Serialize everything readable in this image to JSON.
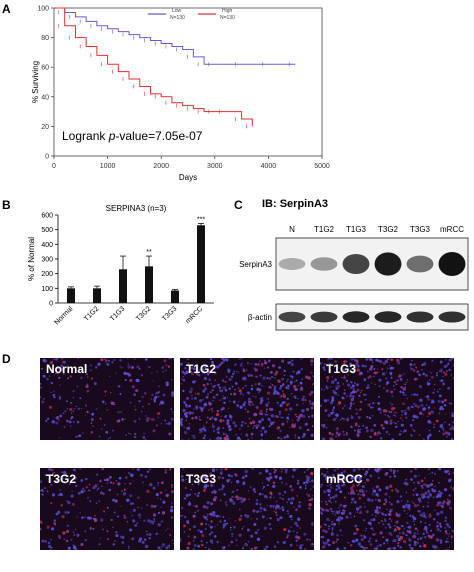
{
  "panel_labels": {
    "a": "A",
    "b": "B",
    "c": "C",
    "d": "D"
  },
  "colors": {
    "low": "#6a5acd",
    "high": "#e03030",
    "bar": "#111111",
    "tissue_bg": "#1a0a20",
    "nuclei": "#5a4dd8"
  },
  "chart_data": [
    {
      "type": "line",
      "panel": "A",
      "xlabel": "Days",
      "ylabel": "% Surviving",
      "xlim": [
        0,
        5000
      ],
      "ylim": [
        0,
        100
      ],
      "xticks": [
        "0",
        "1000",
        "2000",
        "3000",
        "4000",
        "5000"
      ],
      "yticks": [
        "0",
        "20",
        "40",
        "60",
        "80",
        "100"
      ],
      "annotation_prefix": "Logrank ",
      "annotation_italic": "p",
      "annotation_suffix": "-value=7.05e-07",
      "legend_position": "top-right",
      "series": [
        {
          "name": "Low",
          "n_label": "N=130",
          "color": "#6a5acd",
          "x": [
            0,
            200,
            400,
            600,
            800,
            1000,
            1200,
            1400,
            1600,
            1800,
            2000,
            2200,
            2400,
            2600,
            2800,
            3000,
            3500,
            4000,
            4500
          ],
          "y": [
            100,
            97,
            94,
            91,
            88,
            86,
            84,
            82,
            80,
            78,
            76,
            74,
            72,
            67,
            62,
            62,
            62,
            62,
            62
          ]
        },
        {
          "name": "High",
          "n_label": "N=130",
          "color": "#e03030",
          "x": [
            0,
            200,
            400,
            600,
            800,
            1000,
            1200,
            1400,
            1600,
            1800,
            2000,
            2200,
            2400,
            2600,
            2800,
            3000,
            3200,
            3500,
            3700
          ],
          "y": [
            100,
            88,
            80,
            74,
            68,
            62,
            57,
            52,
            47,
            42,
            40,
            36,
            34,
            32,
            30,
            30,
            30,
            25,
            20
          ]
        }
      ]
    },
    {
      "type": "bar",
      "panel": "B",
      "title": "SERPINA3 (n=3)",
      "ylabel": "% of Normal",
      "ylim": [
        0,
        600
      ],
      "yticks": [
        "0",
        "100",
        "200",
        "300",
        "400",
        "500",
        "600"
      ],
      "categories": [
        "Normal",
        "T1G2",
        "T1G3",
        "T3G2",
        "T3G3",
        "mRCC"
      ],
      "values": [
        100,
        100,
        230,
        250,
        85,
        530
      ],
      "errors": [
        10,
        15,
        90,
        70,
        8,
        12
      ],
      "significance": [
        "",
        "",
        "",
        "**",
        "",
        "***"
      ]
    }
  ],
  "western_blot": {
    "title": "IB: SerpinA3",
    "lanes": [
      "N",
      "T1G2",
      "T1G3",
      "T3G2",
      "T3G3",
      "mRCC"
    ],
    "rows": [
      {
        "label": "SerpinA3",
        "intensity": [
          0.25,
          0.35,
          0.75,
          0.95,
          0.55,
          1.0
        ]
      },
      {
        "label": "β-actin",
        "intensity": [
          0.75,
          0.8,
          0.9,
          0.9,
          0.85,
          0.85
        ]
      }
    ]
  },
  "micrographs": [
    {
      "label": "Normal",
      "density": 0.3
    },
    {
      "label": "T1G2",
      "density": 0.85
    },
    {
      "label": "T1G3",
      "density": 0.75
    },
    {
      "label": "T3G2",
      "density": 0.35
    },
    {
      "label": "T3G3",
      "density": 0.55
    },
    {
      "label": "mRCC",
      "density": 0.9
    }
  ]
}
